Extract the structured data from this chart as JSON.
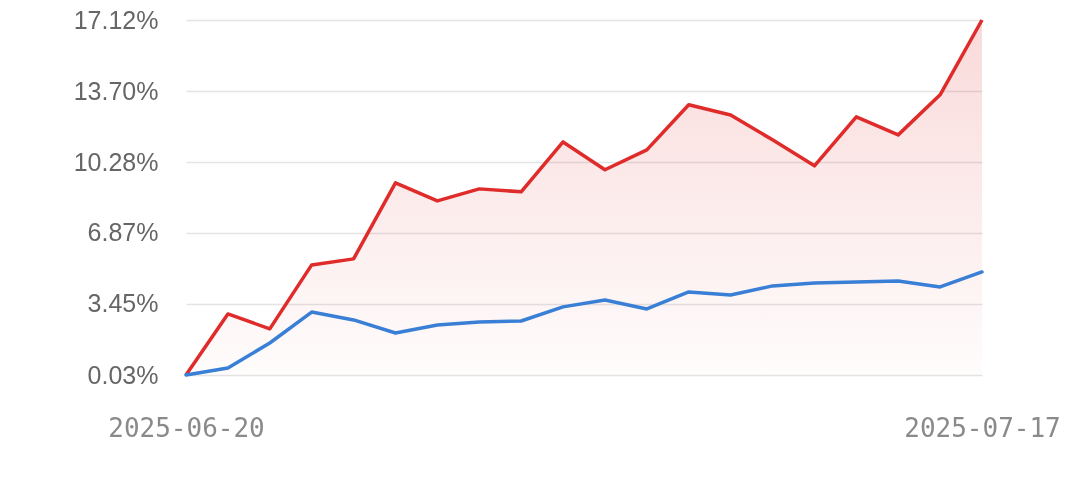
{
  "chart_data": {
    "type": "line",
    "categories": [
      "2025-06-20",
      null,
      null,
      null,
      null,
      null,
      null,
      null,
      null,
      null,
      null,
      null,
      null,
      null,
      null,
      null,
      null,
      null,
      null,
      "2025-07-17"
    ],
    "series": [
      {
        "type": "area",
        "color": "#e02b2b",
        "values": [
          0.03,
          2.97,
          2.25,
          5.33,
          5.62,
          9.28,
          8.41,
          8.99,
          8.85,
          11.25,
          9.91,
          10.87,
          13.04,
          12.55,
          11.35,
          10.1,
          12.46,
          11.59,
          13.52,
          17.12
        ]
      },
      {
        "type": "line",
        "color": "#3a7fd6",
        "values": [
          0.03,
          0.37,
          1.57,
          3.06,
          2.68,
          2.05,
          2.44,
          2.58,
          2.63,
          3.31,
          3.64,
          3.21,
          4.03,
          3.88,
          4.32,
          4.46,
          4.51,
          4.56,
          4.27,
          4.99
        ]
      }
    ],
    "ylim": [
      0.03,
      17.12
    ],
    "yticks": [
      {
        "value": 0.03,
        "label": "0.03%"
      },
      {
        "value": 3.45,
        "label": "3.45%"
      },
      {
        "value": 6.87,
        "label": "6.87%"
      },
      {
        "value": 10.28,
        "label": "10.28%"
      },
      {
        "value": 13.7,
        "label": "13.70%"
      },
      {
        "value": 17.12,
        "label": "17.12%"
      }
    ],
    "grid": "y",
    "line_style": "solid",
    "marker": "none"
  }
}
